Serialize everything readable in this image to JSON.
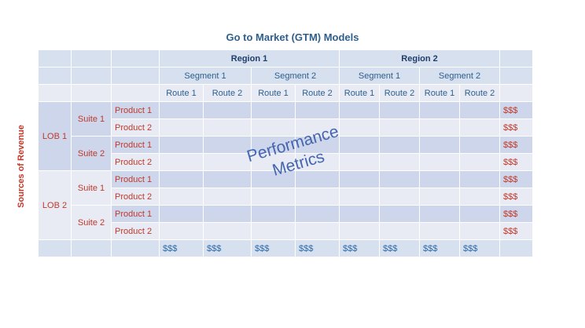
{
  "title": "Go to Market (GTM) Models",
  "side_label": "Sources of Revenue",
  "regions": [
    "Region 1",
    "Region 2"
  ],
  "segments": [
    "Segment 1",
    "Segment 2",
    "Segment 1",
    "Segment 2"
  ],
  "routes": [
    "Route 1",
    "Route 2",
    "Route 1",
    "Route 2",
    "Route 1",
    "Route 2",
    "Route 1",
    "Route 2"
  ],
  "lobs": [
    "LOB 1",
    "LOB 2"
  ],
  "suites": [
    "Suite 1",
    "Suite 2",
    "Suite 1",
    "Suite 2"
  ],
  "products": [
    "Product 1",
    "Product 2",
    "Product 1",
    "Product 2",
    "Product 1",
    "Product 2",
    "Product 1",
    "Product 2"
  ],
  "row_totals": [
    "$$$",
    "$$$",
    "$$$",
    "$$$",
    "$$$",
    "$$$",
    "$$$",
    "$$$"
  ],
  "column_totals": [
    "$$$",
    "$$$",
    "$$$",
    "$$$",
    "$$$",
    "$$$",
    "$$$",
    "$$$"
  ],
  "overlay": {
    "line1": "Performance",
    "line2": "Metrics"
  },
  "colors": {
    "title": "#2e5f8e",
    "revenue_red": "#c0392b",
    "header_band": "#d6e0ef",
    "row_dark": "#cdd6ea",
    "row_light": "#e8ebf4",
    "overlay_blue": "#4466b0"
  }
}
